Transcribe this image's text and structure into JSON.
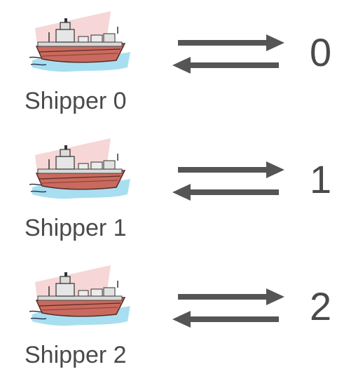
{
  "rows": [
    {
      "shipper_label": "Shipper 0",
      "number": "0",
      "icon": "cargo-ship-icon"
    },
    {
      "shipper_label": "Shipper 1",
      "number": "1",
      "icon": "cargo-ship-icon"
    },
    {
      "shipper_label": "Shipper 2",
      "number": "2",
      "icon": "cargo-ship-icon"
    }
  ],
  "colors": {
    "text": "#4a4a4a",
    "arrow": "#555555",
    "hull": "#c0645a",
    "hull_dark": "#6b2f2a",
    "water": "#a8dff0",
    "sky": "#f3c6c6"
  }
}
